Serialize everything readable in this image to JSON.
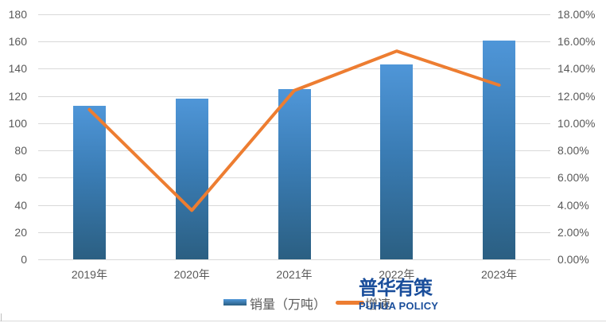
{
  "chart_data": {
    "type": "bar",
    "combo": "bar+line dual-axis",
    "title": "",
    "categories": [
      "2019年",
      "2020年",
      "2021年",
      "2022年",
      "2023年"
    ],
    "series": [
      {
        "name": "销量（万吨）",
        "type": "bar",
        "axis": "left",
        "values": [
          113,
          118,
          125,
          143,
          161
        ]
      },
      {
        "name": "增速",
        "type": "line",
        "axis": "right",
        "unit": "%",
        "values": [
          11.0,
          3.6,
          12.4,
          15.3,
          12.8
        ]
      }
    ],
    "left_axis": {
      "min": 0,
      "max": 180,
      "step": 20,
      "ticks": [
        "0",
        "20",
        "40",
        "60",
        "80",
        "100",
        "120",
        "140",
        "160",
        "180"
      ]
    },
    "right_axis": {
      "min": 0,
      "max": 18,
      "step": 2,
      "ticks": [
        "0.00%",
        "2.00%",
        "4.00%",
        "6.00%",
        "8.00%",
        "10.00%",
        "12.00%",
        "14.00%",
        "16.00%",
        "18.00%"
      ]
    },
    "grid": true,
    "legend_position": "bottom",
    "colors": {
      "bar_top": "#4f96d8",
      "bar_bottom": "#2b5f82",
      "line": "#ed7d31",
      "gridline": "#d9d9d9",
      "tick_text": "#595959",
      "watermark": "#1a4e9b"
    }
  },
  "legend": {
    "bar_label": "销量（万吨）",
    "line_label": "增速"
  },
  "watermark": {
    "line1": "普华有策",
    "line2": "PUHUA POLICY"
  }
}
